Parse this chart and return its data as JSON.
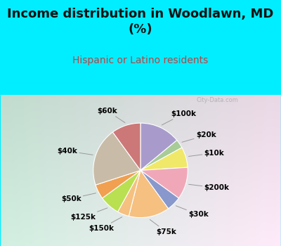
{
  "title": "Income distribution in Woodlawn, MD\n(%)",
  "subtitle": "Hispanic or Latino residents",
  "labels": [
    "$100k",
    "$20k",
    "$10k",
    "$200k",
    "$30k",
    "$75k",
    "$150k",
    "$125k",
    "$50k",
    "$40k",
    "$60k"
  ],
  "sizes": [
    14,
    3,
    7,
    11,
    5,
    14,
    4,
    7,
    5,
    20,
    10
  ],
  "colors": [
    "#a89bcc",
    "#a8cc98",
    "#f0e868",
    "#f0a8b8",
    "#8898cc",
    "#f5c080",
    "#f5c080",
    "#b8e050",
    "#f0a050",
    "#c8bca8",
    "#cc7878"
  ],
  "title_fontsize": 13,
  "subtitle_fontsize": 10,
  "label_fontsize": 7.5,
  "title_color": "#111111",
  "subtitle_color": "#bb4444",
  "bg_top_color": "#00eeff",
  "watermark_text": "City-Data.com"
}
